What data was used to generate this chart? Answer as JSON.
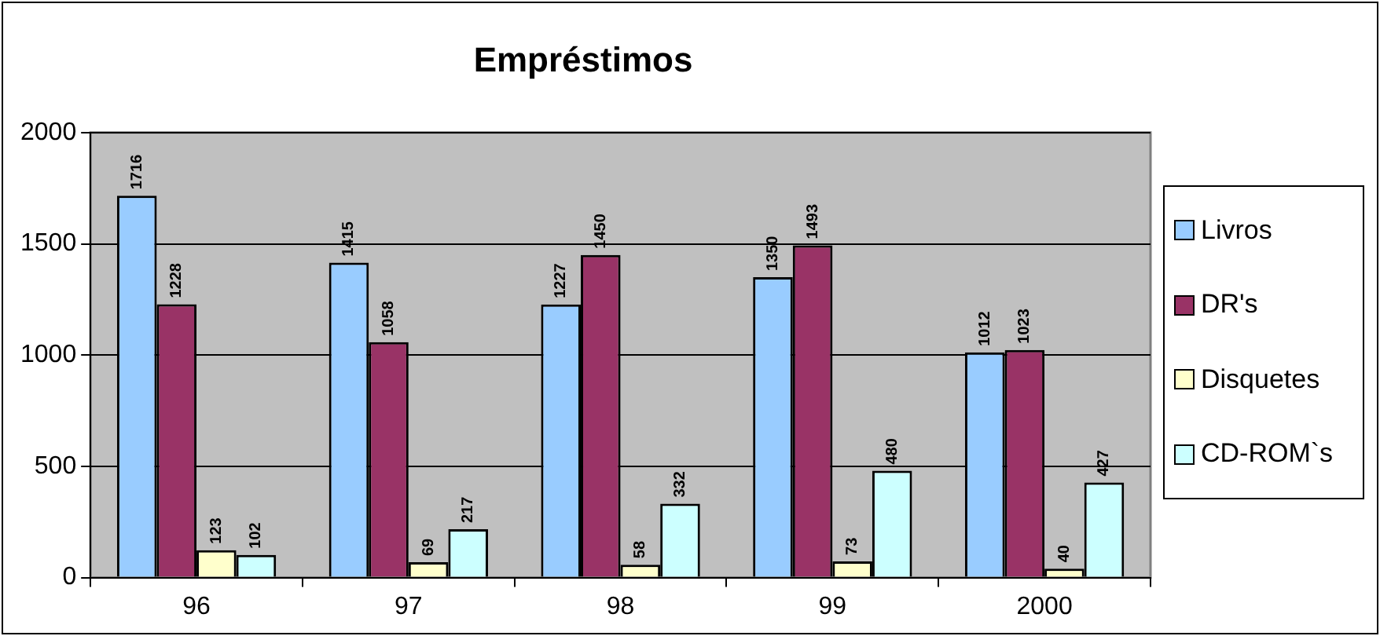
{
  "chart_data": {
    "type": "bar",
    "title": "Empréstimos",
    "categories": [
      "96",
      "97",
      "98",
      "99",
      "2000"
    ],
    "series": [
      {
        "name": "Livros",
        "color": "#99ccff",
        "values": [
          1716,
          1415,
          1227,
          1350,
          1012
        ]
      },
      {
        "name": "DR's",
        "color": "#993366",
        "values": [
          1228,
          1058,
          1450,
          1493,
          1023
        ]
      },
      {
        "name": "Disquetes",
        "color": "#ffffcc",
        "values": [
          123,
          69,
          58,
          73,
          40
        ]
      },
      {
        "name": "CD-ROM`s",
        "color": "#ccffff",
        "values": [
          102,
          217,
          332,
          480,
          427
        ]
      }
    ],
    "ylim": [
      0,
      2000
    ],
    "yticks": [
      0,
      500,
      1000,
      1500,
      2000
    ],
    "grid": "y",
    "legend": "right",
    "data_labels": true
  }
}
